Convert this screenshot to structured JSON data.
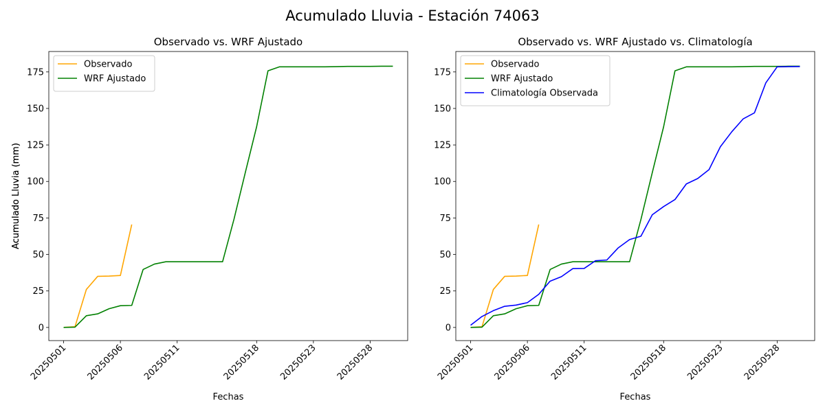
{
  "suptitle": "Acumulado Lluvia - Estación 74063",
  "colors": {
    "observado": "#ffa500",
    "wrf": "#008000",
    "clim": "#0000ff"
  },
  "chart_data": [
    {
      "type": "line",
      "title": "Observado vs. WRF Ajustado",
      "xlabel": "Fechas",
      "ylabel": "Acumulado Lluvia (mm)",
      "ylim": [
        -9,
        189
      ],
      "yticks": [
        0,
        25,
        50,
        75,
        100,
        125,
        150,
        175
      ],
      "x_range": [
        20250501,
        20250530
      ],
      "xticks": [
        "20250501",
        "20250506",
        "20250511",
        "20250518",
        "20250523",
        "20250528"
      ],
      "legend": "upper-left",
      "series": [
        {
          "name": "Observado",
          "color": "#ffa500",
          "x": [
            "20250501",
            "20250502",
            "20250503",
            "20250504",
            "20250505",
            "20250506",
            "20250507"
          ],
          "values": [
            0,
            0.5,
            26,
            35,
            35.2,
            35.6,
            70.5
          ]
        },
        {
          "name": "WRF Ajustado",
          "color": "#008000",
          "x": [
            "20250501",
            "20250502",
            "20250503",
            "20250504",
            "20250505",
            "20250506",
            "20250507",
            "20250508",
            "20250509",
            "20250510",
            "20250511",
            "20250512",
            "20250513",
            "20250514",
            "20250515",
            "20250516",
            "20250517",
            "20250518",
            "20250519",
            "20250520",
            "20250521",
            "20250522",
            "20250523",
            "20250524",
            "20250525",
            "20250526",
            "20250527",
            "20250528",
            "20250529",
            "20250530"
          ],
          "values": [
            0,
            0.2,
            8,
            9.3,
            12.8,
            14.9,
            15.1,
            39.7,
            43.4,
            45,
            45,
            45,
            45,
            45,
            45,
            74,
            106,
            137.5,
            175.8,
            178.5,
            178.5,
            178.5,
            178.5,
            178.5,
            178.6,
            178.8,
            178.8,
            178.8,
            178.9,
            178.9
          ]
        }
      ]
    },
    {
      "type": "line",
      "title": "Observado vs. WRF Ajustado vs. Climatología",
      "xlabel": "Fechas",
      "ylabel": "Acumulado Lluvia (mm)",
      "ylim": [
        -9,
        189
      ],
      "yticks": [
        0,
        25,
        50,
        75,
        100,
        125,
        150,
        175
      ],
      "x_range": [
        20250501,
        20250530
      ],
      "xticks": [
        "20250501",
        "20250506",
        "20250511",
        "20250518",
        "20250523",
        "20250528"
      ],
      "legend": "upper-left",
      "series": [
        {
          "name": "Observado",
          "color": "#ffa500",
          "x": [
            "20250501",
            "20250502",
            "20250503",
            "20250504",
            "20250505",
            "20250506",
            "20250507"
          ],
          "values": [
            0,
            0.5,
            26,
            35,
            35.2,
            35.6,
            70.5
          ]
        },
        {
          "name": "WRF Ajustado",
          "color": "#008000",
          "x": [
            "20250501",
            "20250502",
            "20250503",
            "20250504",
            "20250505",
            "20250506",
            "20250507",
            "20250508",
            "20250509",
            "20250510",
            "20250511",
            "20250512",
            "20250513",
            "20250514",
            "20250515",
            "20250516",
            "20250517",
            "20250518",
            "20250519",
            "20250520",
            "20250521",
            "20250522",
            "20250523",
            "20250524",
            "20250525",
            "20250526",
            "20250527",
            "20250528",
            "20250529",
            "20250530"
          ],
          "values": [
            0,
            0.2,
            8,
            9.3,
            12.8,
            14.9,
            15.1,
            39.7,
            43.4,
            45,
            45,
            45,
            45,
            45,
            45,
            74,
            106,
            137.5,
            175.8,
            178.5,
            178.5,
            178.5,
            178.5,
            178.5,
            178.6,
            178.8,
            178.8,
            178.8,
            178.9,
            178.9
          ]
        },
        {
          "name": "Climatología Observada",
          "color": "#0000ff",
          "x": [
            "20250501",
            "20250502",
            "20250503",
            "20250504",
            "20250505",
            "20250506",
            "20250507",
            "20250508",
            "20250509",
            "20250510",
            "20250511",
            "20250512",
            "20250513",
            "20250514",
            "20250515",
            "20250516",
            "20250517",
            "20250518",
            "20250519",
            "20250520",
            "20250521",
            "20250522",
            "20250523",
            "20250524",
            "20250525",
            "20250526",
            "20250527",
            "20250528",
            "20250529",
            "20250530"
          ],
          "values": [
            1.5,
            7.5,
            11.5,
            14.5,
            15.3,
            17,
            22.7,
            31.7,
            34.8,
            40.3,
            40.4,
            45.7,
            46.2,
            54.5,
            60.2,
            62.5,
            77.2,
            82.8,
            87.6,
            98.3,
            102,
            108.1,
            123.8,
            134,
            142.8,
            147,
            167.5,
            178.5,
            178.6,
            178.7
          ]
        }
      ]
    }
  ]
}
